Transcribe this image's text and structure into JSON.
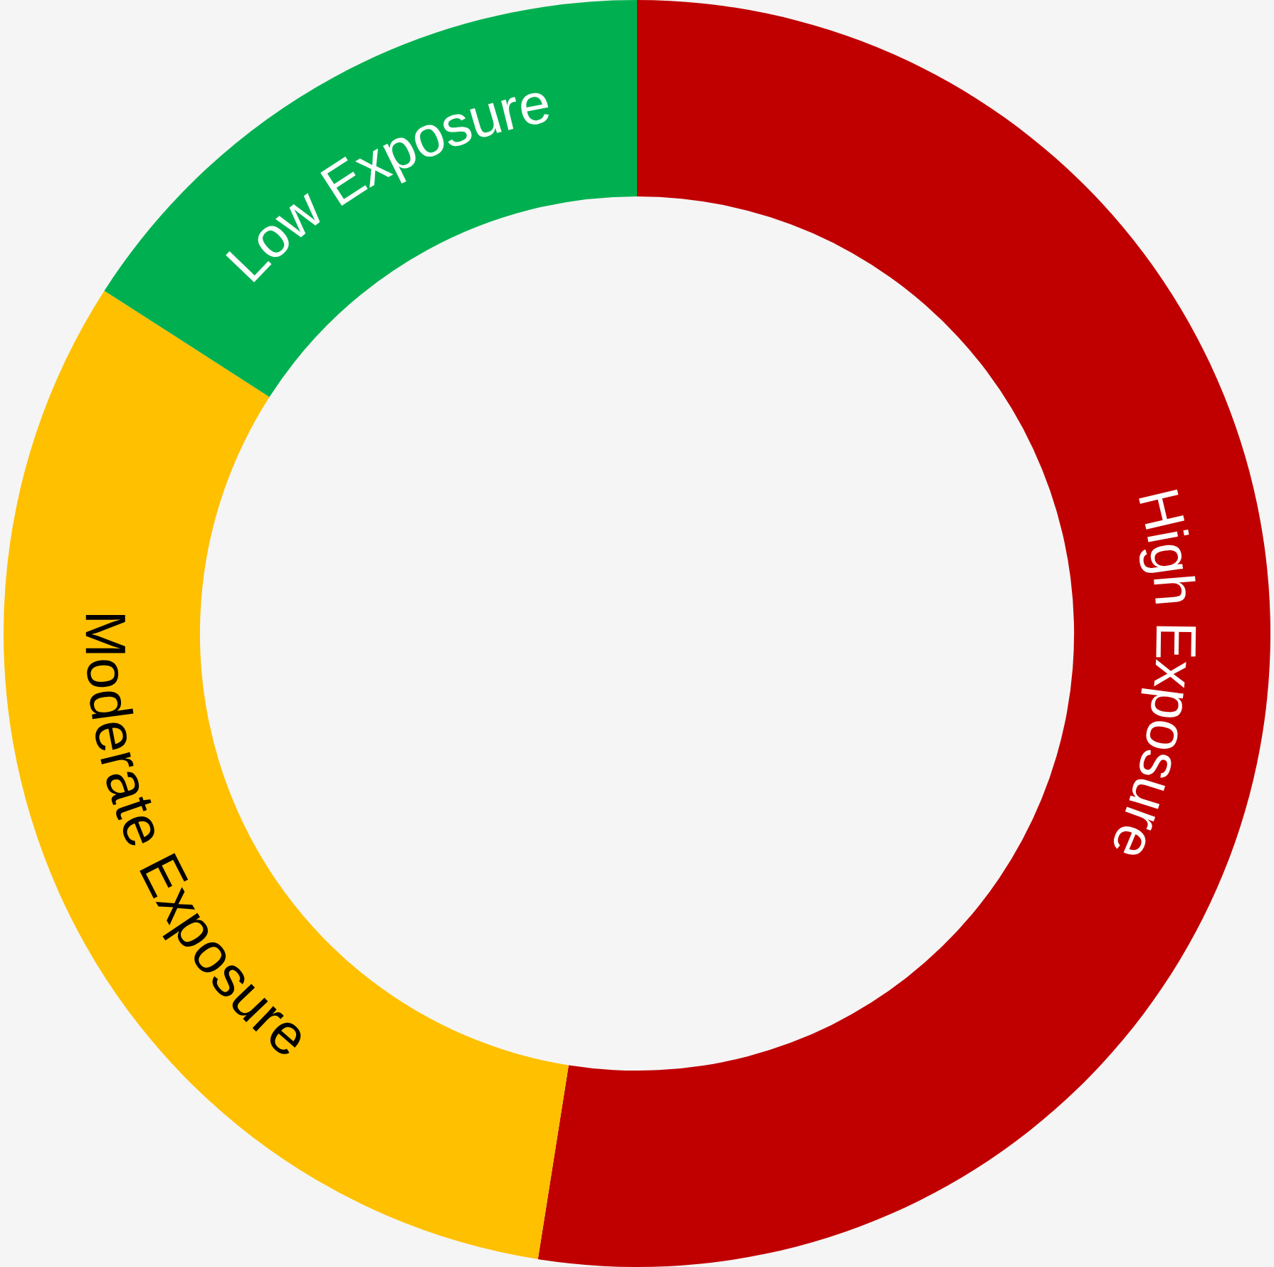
{
  "chart_data": {
    "type": "donut",
    "categories": [
      "High Exposure",
      "Moderate Exposure",
      "Low Exposure"
    ],
    "values": [
      52.5,
      31.6,
      15.9
    ],
    "colors": [
      "#c00000",
      "#ffc000",
      "#00b050"
    ],
    "legend": false
  }
}
